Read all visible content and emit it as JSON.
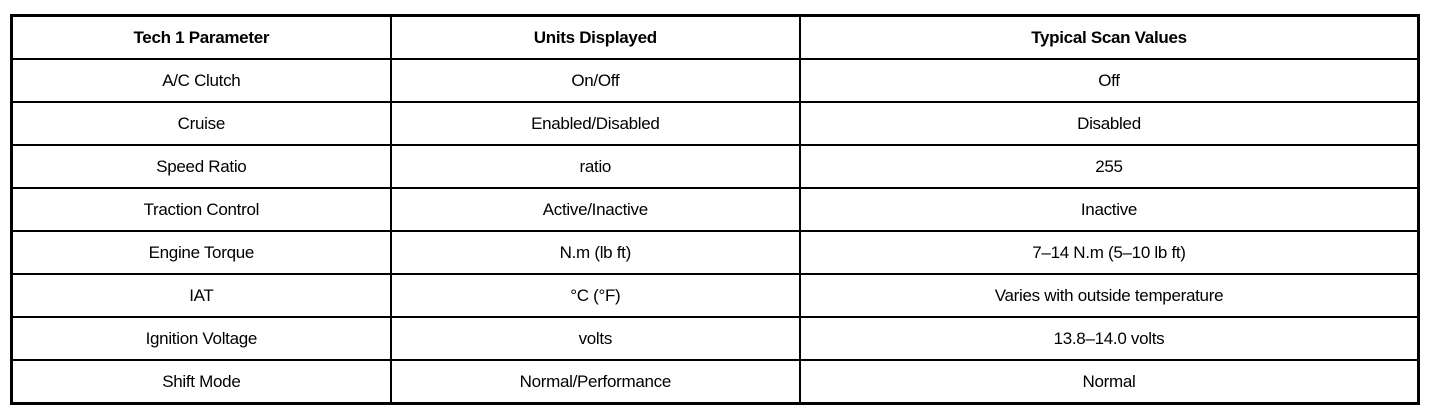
{
  "table": {
    "headers": [
      "Tech 1 Parameter",
      "Units Displayed",
      "Typical Scan Values"
    ],
    "rows": [
      [
        "A/C Clutch",
        "On/Off",
        "Off"
      ],
      [
        "Cruise",
        "Enabled/Disabled",
        "Disabled"
      ],
      [
        "Speed Ratio",
        "ratio",
        "255"
      ],
      [
        "Traction Control",
        "Active/Inactive",
        "Inactive"
      ],
      [
        "Engine Torque",
        "N.m (lb ft)",
        "7–14 N.m (5–10 lb ft)"
      ],
      [
        "IAT",
        "°C (°F)",
        "Varies with outside temperature"
      ],
      [
        "Ignition Voltage",
        "volts",
        "13.8–14.0 volts"
      ],
      [
        "Shift Mode",
        "Normal/Performance",
        "Normal"
      ]
    ]
  }
}
